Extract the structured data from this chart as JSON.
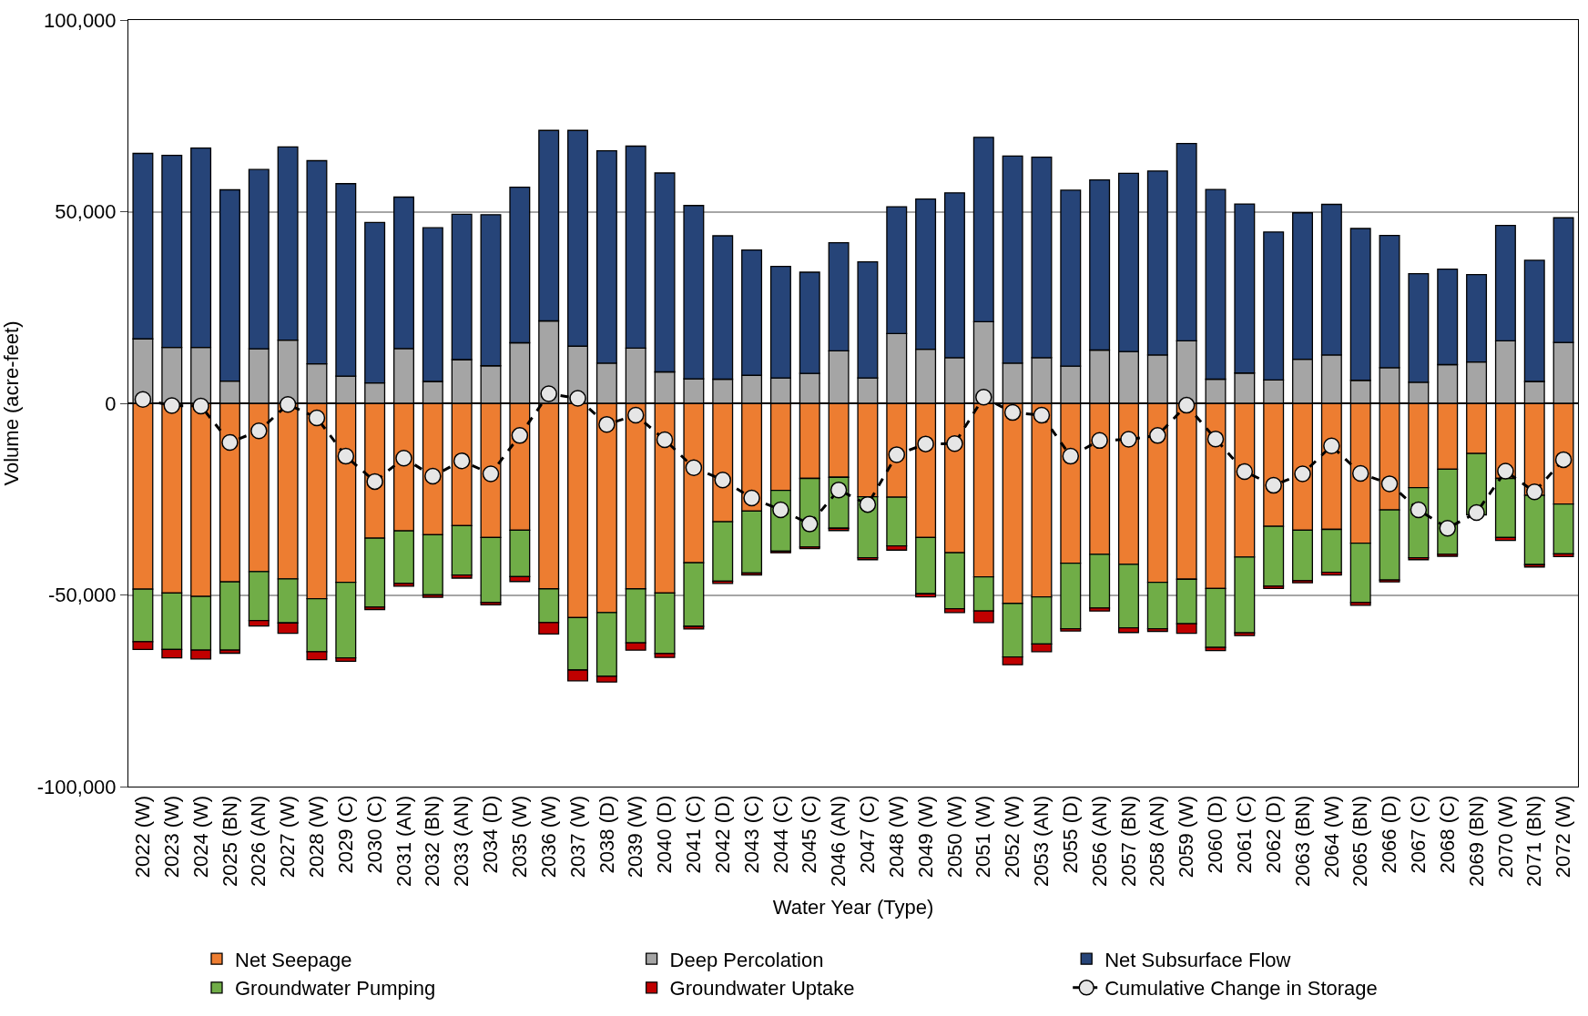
{
  "chart_data": {
    "type": "bar",
    "stacked": true,
    "xlabel": "Water Year (Type)",
    "ylabel": "Volume (acre-feet)",
    "categories": [
      "2022 (W)",
      "2023 (W)",
      "2024 (W)",
      "2025 (BN)",
      "2026 (AN)",
      "2027 (W)",
      "2028 (W)",
      "2029 (C)",
      "2030 (C)",
      "2031 (AN)",
      "2032 (BN)",
      "2033 (AN)",
      "2034 (D)",
      "2035 (W)",
      "2036 (W)",
      "2037 (W)",
      "2038 (D)",
      "2039 (W)",
      "2040 (D)",
      "2041 (C)",
      "2042 (D)",
      "2043 (C)",
      "2044 (C)",
      "2045 (C)",
      "2046 (AN)",
      "2047 (C)",
      "2048 (W)",
      "2049 (W)",
      "2050 (W)",
      "2051 (W)",
      "2052 (W)",
      "2053 (AN)",
      "2055 (D)",
      "2056 (AN)",
      "2057 (BN)",
      "2058 (AN)",
      "2059 (W)",
      "2060 (D)",
      "2061 (C)",
      "2062 (D)",
      "2063 (BN)",
      "2064 (W)",
      "2065 (BN)",
      "2066 (D)",
      "2067 (C)",
      "2068 (C)",
      "2069 (BN)",
      "2070 (W)",
      "2071 (BN)",
      "2072 (W)"
    ],
    "series": [
      {
        "name": "Net Seepage",
        "color": "#ed7d31",
        "values": [
          -48500,
          -49500,
          -50400,
          -46600,
          -43900,
          -45800,
          -51000,
          -46700,
          -35200,
          -33300,
          -34300,
          -31900,
          -35000,
          -33100,
          -48400,
          -55900,
          -54600,
          -48400,
          -49500,
          -41600,
          -30900,
          -28100,
          -22700,
          -19600,
          -19300,
          -24400,
          -24500,
          -35000,
          -39000,
          -45300,
          -52200,
          -50500,
          -41700,
          -39400,
          -42000,
          -46700,
          -45900,
          -48300,
          -40100,
          -32100,
          -33100,
          -32900,
          -36500,
          -27800,
          -22000,
          -17200,
          -13100,
          -19600,
          -24000,
          -26300
        ]
      },
      {
        "name": "Deep Percolation",
        "color": "#a5a5a5",
        "values": [
          16800,
          14600,
          14600,
          5800,
          14200,
          16500,
          10300,
          7100,
          5300,
          14300,
          5700,
          11400,
          9800,
          15800,
          21500,
          14900,
          10500,
          14400,
          8200,
          6400,
          6300,
          7300,
          6600,
          7800,
          13700,
          6600,
          18200,
          14100,
          11900,
          21300,
          10500,
          11900,
          9700,
          13900,
          13500,
          12600,
          16300,
          6300,
          7900,
          6100,
          11500,
          12600,
          6000,
          9300,
          5500,
          10100,
          10800,
          16300,
          5700,
          15900
        ]
      },
      {
        "name": "Net Subsurface Flow",
        "color": "#264478",
        "values": [
          48400,
          50100,
          52000,
          49900,
          46800,
          50400,
          53000,
          50200,
          41900,
          39500,
          40100,
          37900,
          39400,
          40600,
          49700,
          56300,
          55400,
          52700,
          51900,
          45200,
          37400,
          32700,
          29100,
          26400,
          28200,
          30300,
          33100,
          39200,
          43000,
          48100,
          54000,
          52300,
          45900,
          44400,
          46500,
          48000,
          51500,
          49500,
          44100,
          38600,
          38200,
          39300,
          39600,
          34500,
          28300,
          24900,
          22800,
          30100,
          31600,
          32500
        ]
      },
      {
        "name": "Groundwater Pumping",
        "color": "#70ad47",
        "values": [
          -13700,
          -14700,
          -14000,
          -17800,
          -12800,
          -11500,
          -13800,
          -19700,
          -18000,
          -13700,
          -15700,
          -12900,
          -17000,
          -12100,
          -8800,
          -13700,
          -16600,
          -14100,
          -15800,
          -16600,
          -15500,
          -16200,
          -15900,
          -17900,
          -13300,
          -15900,
          -12700,
          -14700,
          -14600,
          -8900,
          -14000,
          -12300,
          -17100,
          -14000,
          -16600,
          -12100,
          -11600,
          -15400,
          -19800,
          -15600,
          -13200,
          -11200,
          -15500,
          -18300,
          -18300,
          -22200,
          -16000,
          -15400,
          -18100,
          -13000
        ]
      },
      {
        "name": "Groundwater Uptake",
        "color": "#c00000",
        "values": [
          -2000,
          -2200,
          -2300,
          -800,
          -1400,
          -2700,
          -2100,
          -900,
          -600,
          -700,
          -600,
          -800,
          -600,
          -1300,
          -3000,
          -2800,
          -1500,
          -1900,
          -1000,
          -700,
          -600,
          -500,
          -400,
          -400,
          -600,
          -500,
          -1100,
          -800,
          -1000,
          -3000,
          -2000,
          -2000,
          -600,
          -800,
          -1200,
          -700,
          -2500,
          -800,
          -700,
          -600,
          -500,
          -700,
          -700,
          -500,
          -500,
          -500,
          null,
          -800,
          -600,
          -700
        ]
      },
      {
        "name": "Cumulative Change in Storage",
        "type": "line",
        "color": "#000000",
        "marker": "circle",
        "line_style": "dashed",
        "values": [
          1000,
          -600,
          -700,
          -10200,
          -7200,
          -300,
          -3800,
          -13800,
          -20400,
          -14300,
          -19000,
          -15000,
          -18400,
          -8400,
          2500,
          1300,
          -5500,
          -3100,
          -9500,
          -16800,
          -20000,
          -24700,
          -27800,
          -31500,
          -22600,
          -26400,
          -13400,
          -10600,
          -10500,
          1600,
          -2400,
          -3100,
          -13800,
          -9700,
          -9400,
          -8400,
          -500,
          -9300,
          -17800,
          -21400,
          -18400,
          -11100,
          -18300,
          -21000,
          -27800,
          -32600,
          -28500,
          -17700,
          -23100,
          -14700
        ]
      }
    ],
    "ylim": [
      -100000,
      100000
    ],
    "yticks": [
      {
        "value": -100000,
        "label": "-100,000"
      },
      {
        "value": -50000,
        "label": "-50,000"
      },
      {
        "value": 0,
        "label": "0"
      },
      {
        "value": 50000,
        "label": "50,000"
      },
      {
        "value": 100000,
        "label": "100,000"
      }
    ],
    "grid": "y",
    "legend": "bottom"
  }
}
